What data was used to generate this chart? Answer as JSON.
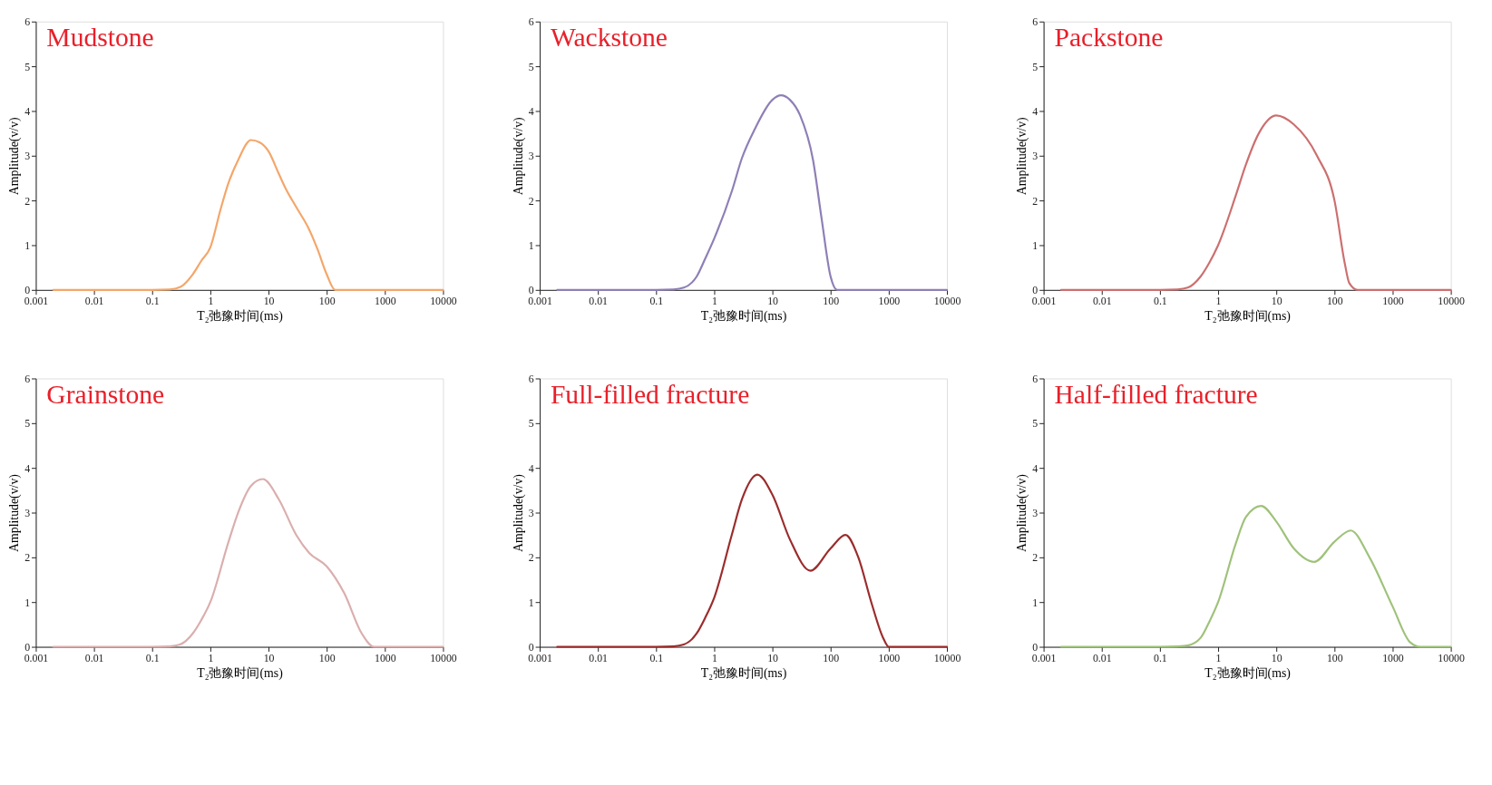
{
  "chart_data": [
    {
      "type": "line",
      "title": "Mudstone",
      "xlabel": "T₂弛豫时间(ms)",
      "ylabel": "Amplitude(v/v)",
      "log": "x",
      "xlim": [
        0.001,
        10000
      ],
      "xticks": [
        0.001,
        0.01,
        0.1,
        1,
        10,
        100,
        1000,
        10000
      ],
      "ylim": [
        0,
        6
      ],
      "yticks": [
        0,
        1,
        2,
        3,
        4,
        5,
        6
      ],
      "series": [
        {
          "color": "#f4a66a",
          "x": [
            0.002,
            0.1,
            0.2,
            0.3,
            0.5,
            0.7,
            1,
            1.5,
            2,
            3,
            5,
            7,
            10,
            15,
            20,
            30,
            50,
            70,
            100,
            140,
            10000
          ],
          "values": [
            0,
            0,
            0.01,
            0.06,
            0.35,
            0.65,
            0.95,
            1.8,
            2.35,
            2.9,
            3.35,
            3.3,
            3.1,
            2.6,
            2.25,
            1.85,
            1.35,
            0.9,
            0.35,
            0,
            0
          ]
        }
      ]
    },
    {
      "type": "line",
      "title": "Wackstone",
      "xlabel": "T₂弛豫时间(ms)",
      "ylabel": "Amplitude(v/v)",
      "log": "x",
      "xlim": [
        0.001,
        10000
      ],
      "xticks": [
        0.001,
        0.01,
        0.1,
        1,
        10,
        100,
        1000,
        10000
      ],
      "ylim": [
        0,
        6
      ],
      "yticks": [
        0,
        1,
        2,
        3,
        4,
        5,
        6
      ],
      "series": [
        {
          "color": "#8e7fb6",
          "x": [
            0.002,
            0.1,
            0.2,
            0.3,
            0.5,
            0.7,
            1,
            2,
            3,
            5,
            10,
            14,
            20,
            30,
            50,
            70,
            100,
            130,
            10000
          ],
          "values": [
            0,
            0,
            0.01,
            0.05,
            0.3,
            0.7,
            1.15,
            2.2,
            2.95,
            3.6,
            4.25,
            4.35,
            4.25,
            3.9,
            2.9,
            1.6,
            0.3,
            0,
            0
          ]
        }
      ]
    },
    {
      "type": "line",
      "title": "Packstone",
      "xlabel": "T₂弛豫时间(ms)",
      "ylabel": "Amplitude(v/v)",
      "log": "x",
      "xlim": [
        0.001,
        10000
      ],
      "xticks": [
        0.001,
        0.01,
        0.1,
        1,
        10,
        100,
        1000,
        10000
      ],
      "ylim": [
        0,
        6
      ],
      "yticks": [
        0,
        1,
        2,
        3,
        4,
        5,
        6
      ],
      "series": [
        {
          "color": "#cc6f6f",
          "x": [
            0.002,
            0.1,
            0.2,
            0.3,
            0.5,
            0.7,
            1,
            2,
            3,
            5,
            10,
            20,
            50,
            100,
            150,
            180,
            250,
            10000
          ],
          "values": [
            0,
            0,
            0.01,
            0.05,
            0.3,
            0.6,
            1.0,
            2.1,
            2.8,
            3.5,
            3.9,
            3.7,
            3.0,
            2.0,
            0.6,
            0.15,
            0,
            0
          ]
        }
      ]
    },
    {
      "type": "line",
      "title": "Grainstone",
      "xlabel": "T₂弛豫时间(ms)",
      "ylabel": "Amplitude(v/v)",
      "log": "x",
      "xlim": [
        0.001,
        10000
      ],
      "xticks": [
        0.001,
        0.01,
        0.1,
        1,
        10,
        100,
        1000,
        10000
      ],
      "ylim": [
        0,
        6
      ],
      "yticks": [
        0,
        1,
        2,
        3,
        4,
        5,
        6
      ],
      "series": [
        {
          "color": "#dbaeae",
          "x": [
            0.002,
            0.1,
            0.2,
            0.3,
            0.5,
            0.7,
            1,
            2,
            3,
            5,
            8,
            15,
            30,
            50,
            100,
            200,
            400,
            650,
            10000
          ],
          "values": [
            0,
            0,
            0.01,
            0.05,
            0.3,
            0.6,
            1.0,
            2.3,
            3.0,
            3.6,
            3.75,
            3.3,
            2.5,
            2.1,
            1.8,
            1.2,
            0.3,
            0,
            0
          ]
        }
      ]
    },
    {
      "type": "line",
      "title": "Full-filled fracture",
      "xlabel": "T₂弛豫时间(ms)",
      "ylabel": "Amplitude(v/v)",
      "log": "x",
      "xlim": [
        0.001,
        10000
      ],
      "xticks": [
        0.001,
        0.01,
        0.1,
        1,
        10,
        100,
        1000,
        10000
      ],
      "ylim": [
        0,
        6
      ],
      "yticks": [
        0,
        1,
        2,
        3,
        4,
        5,
        6
      ],
      "series": [
        {
          "color": "#9b2c2c",
          "x": [
            0.002,
            0.1,
            0.2,
            0.3,
            0.5,
            0.7,
            1,
            2,
            3,
            5.5,
            10,
            20,
            45,
            100,
            180,
            300,
            500,
            800,
            1000,
            10000
          ],
          "values": [
            0,
            0,
            0.01,
            0.05,
            0.3,
            0.65,
            1.1,
            2.5,
            3.3,
            3.85,
            3.4,
            2.4,
            1.7,
            2.2,
            2.5,
            2.0,
            1.0,
            0.2,
            0,
            0
          ]
        }
      ]
    },
    {
      "type": "line",
      "title": "Half-filled fracture",
      "xlabel": "T₂弛豫时间(ms)",
      "ylabel": "Amplitude(v/v)",
      "log": "x",
      "xlim": [
        0.001,
        10000
      ],
      "xticks": [
        0.001,
        0.01,
        0.1,
        1,
        10,
        100,
        1000,
        10000
      ],
      "ylim": [
        0,
        6
      ],
      "yticks": [
        0,
        1,
        2,
        3,
        4,
        5,
        6
      ],
      "series": [
        {
          "color": "#9fc27a",
          "x": [
            0.002,
            0.1,
            0.2,
            0.3,
            0.5,
            0.7,
            1,
            2,
            3,
            5.5,
            10,
            20,
            45,
            100,
            190,
            400,
            1000,
            2000,
            3000,
            10000
          ],
          "values": [
            0,
            0,
            0.01,
            0.03,
            0.2,
            0.55,
            1.0,
            2.3,
            2.9,
            3.15,
            2.8,
            2.2,
            1.9,
            2.35,
            2.6,
            2.0,
            0.9,
            0.1,
            0,
            0
          ]
        }
      ]
    }
  ]
}
